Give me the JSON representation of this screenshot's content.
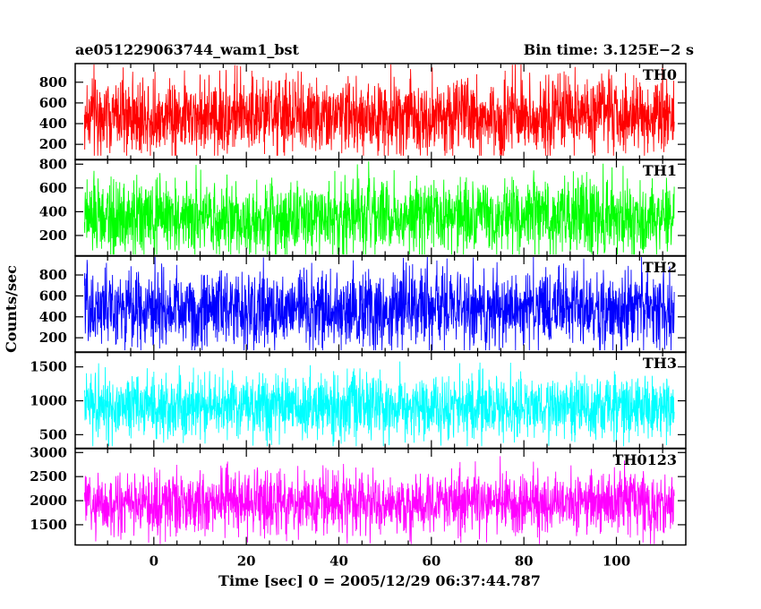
{
  "chart_data": {
    "type": "line",
    "title_left": "ae051229063744_wam1_bst",
    "title_right": "Bin time: 3.125E−2 s",
    "xlabel": "Time [sec] 0 = 2005/12/29 06:37:44.787",
    "ylabel": "Counts/sec",
    "xlim": [
      -17,
      115
    ],
    "x_ticks": [
      0,
      20,
      40,
      60,
      80,
      100
    ],
    "x_data_range": [
      -15,
      112.5
    ],
    "panels": [
      {
        "name": "TH0",
        "color": "#ff0000",
        "ylim": [
          50,
          980
        ],
        "y_ticks": [
          200,
          400,
          600,
          800
        ],
        "baseline": 480,
        "spread": 190,
        "min": 90,
        "max": 980
      },
      {
        "name": "TH1",
        "color": "#00ff00",
        "ylim": [
          30,
          840
        ],
        "y_ticks": [
          200,
          400,
          600,
          800
        ],
        "baseline": 350,
        "spread": 160,
        "min": 40,
        "max": 840
      },
      {
        "name": "TH2",
        "color": "#0000ff",
        "ylim": [
          60,
          980
        ],
        "y_ticks": [
          200,
          400,
          600,
          800
        ],
        "baseline": 470,
        "spread": 190,
        "min": 80,
        "max": 980
      },
      {
        "name": "TH3",
        "color": "#00ffff",
        "ylim": [
          300,
          1720
        ],
        "y_ticks": [
          500,
          1000,
          1500
        ],
        "baseline": 900,
        "spread": 240,
        "min": 330,
        "max": 1700
      },
      {
        "name": "TH0123",
        "color": "#ff00ff",
        "ylim": [
          1080,
          3080
        ],
        "y_ticks": [
          1500,
          2000,
          2500,
          3000
        ],
        "baseline": 1950,
        "spread": 330,
        "min": 1100,
        "max": 3050
      }
    ]
  }
}
